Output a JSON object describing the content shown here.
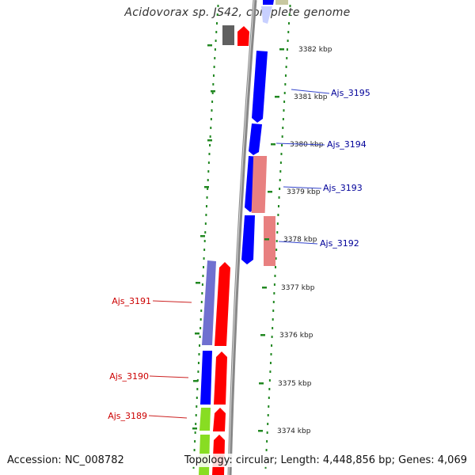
{
  "title": "Acidovorax sp. JS42, complete genome",
  "footer": {
    "accession": "Accession: NC_008782",
    "summary": "Topology: circular; Length: 4,448,856 bp; Genes: 4,069"
  },
  "colors": {
    "forward_gene": "#ff0000",
    "reverse_gene": "#0000ff",
    "pink_gene": "#e88080",
    "purple_gene": "#7070d0",
    "green_gene": "#88dd22",
    "gray_gene": "#606060",
    "backbone": "#888888",
    "tick": "#228822",
    "label_left": "#cc0000",
    "label_right": "#000099"
  },
  "kbp_ticks": [
    "3382 kbp",
    "3381 kbp",
    "3380 kbp",
    "3379 kbp",
    "3378 kbp",
    "3377 kbp",
    "3376 kbp",
    "3375 kbp",
    "3374 kbp"
  ],
  "genes_right": [
    "Ajs_3195",
    "Ajs_3194",
    "Ajs_3193",
    "Ajs_3192"
  ],
  "genes_left": [
    "Ajs_3191",
    "Ajs_3190",
    "Ajs_3189"
  ]
}
